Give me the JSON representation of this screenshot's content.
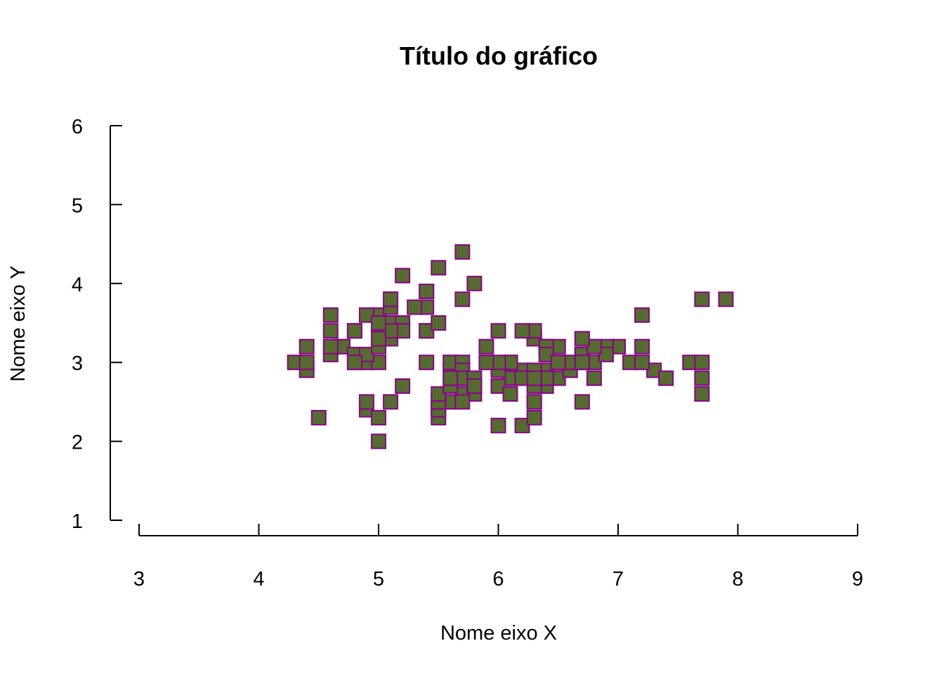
{
  "chart_data": {
    "type": "scatter",
    "title": "Título do gráfico",
    "xlabel": "Nome eixo X",
    "ylabel": "Nome eixo Y",
    "xlim": [
      3,
      9
    ],
    "ylim": [
      1,
      6
    ],
    "xticks": [
      3,
      4,
      5,
      6,
      7,
      8,
      9
    ],
    "yticks": [
      1,
      2,
      3,
      4,
      5,
      6
    ],
    "grid": false,
    "marker": "square",
    "fill_color": "#556B2F",
    "edge_color": "#8B008B",
    "series": [
      {
        "points": [
          [
            5.1,
            3.5
          ],
          [
            4.9,
            3.0
          ],
          [
            4.7,
            3.2
          ],
          [
            4.6,
            3.1
          ],
          [
            5.0,
            3.6
          ],
          [
            5.4,
            3.9
          ],
          [
            4.6,
            3.4
          ],
          [
            5.0,
            3.4
          ],
          [
            4.4,
            2.9
          ],
          [
            4.9,
            3.1
          ],
          [
            5.4,
            3.7
          ],
          [
            4.8,
            3.4
          ],
          [
            4.8,
            3.0
          ],
          [
            4.3,
            3.0
          ],
          [
            5.8,
            4.0
          ],
          [
            5.7,
            4.4
          ],
          [
            5.4,
            3.9
          ],
          [
            5.1,
            3.5
          ],
          [
            5.7,
            3.8
          ],
          [
            5.1,
            3.8
          ],
          [
            5.4,
            3.4
          ],
          [
            5.1,
            3.7
          ],
          [
            4.6,
            3.6
          ],
          [
            5.1,
            3.3
          ],
          [
            4.8,
            3.4
          ],
          [
            5.0,
            3.0
          ],
          [
            5.0,
            3.4
          ],
          [
            5.2,
            3.5
          ],
          [
            5.2,
            3.4
          ],
          [
            4.7,
            3.2
          ],
          [
            4.8,
            3.1
          ],
          [
            5.4,
            3.4
          ],
          [
            5.2,
            4.1
          ],
          [
            5.5,
            4.2
          ],
          [
            4.9,
            3.1
          ],
          [
            5.0,
            3.2
          ],
          [
            5.5,
            3.5
          ],
          [
            4.9,
            3.6
          ],
          [
            4.4,
            3.0
          ],
          [
            5.1,
            3.4
          ],
          [
            5.0,
            3.5
          ],
          [
            4.5,
            2.3
          ],
          [
            4.4,
            3.2
          ],
          [
            5.0,
            3.5
          ],
          [
            5.1,
            3.8
          ],
          [
            4.8,
            3.0
          ],
          [
            5.1,
            3.8
          ],
          [
            4.6,
            3.2
          ],
          [
            5.3,
            3.7
          ],
          [
            5.0,
            3.3
          ],
          [
            7.0,
            3.2
          ],
          [
            6.4,
            3.2
          ],
          [
            6.9,
            3.1
          ],
          [
            5.5,
            2.3
          ],
          [
            6.5,
            2.8
          ],
          [
            5.7,
            2.8
          ],
          [
            6.3,
            3.3
          ],
          [
            4.9,
            2.4
          ],
          [
            6.6,
            2.9
          ],
          [
            5.2,
            2.7
          ],
          [
            5.0,
            2.0
          ],
          [
            5.9,
            3.0
          ],
          [
            6.0,
            2.2
          ],
          [
            6.1,
            2.9
          ],
          [
            5.6,
            2.9
          ],
          [
            6.7,
            3.1
          ],
          [
            5.6,
            3.0
          ],
          [
            5.8,
            2.7
          ],
          [
            6.2,
            2.2
          ],
          [
            5.6,
            2.5
          ],
          [
            5.9,
            3.2
          ],
          [
            6.1,
            2.8
          ],
          [
            6.3,
            2.5
          ],
          [
            6.1,
            2.8
          ],
          [
            6.4,
            2.9
          ],
          [
            6.6,
            3.0
          ],
          [
            6.8,
            2.8
          ],
          [
            6.7,
            3.0
          ],
          [
            6.0,
            2.9
          ],
          [
            5.7,
            2.6
          ],
          [
            5.5,
            2.4
          ],
          [
            5.5,
            2.4
          ],
          [
            5.8,
            2.7
          ],
          [
            6.0,
            2.7
          ],
          [
            5.4,
            3.0
          ],
          [
            6.0,
            3.4
          ],
          [
            6.7,
            3.1
          ],
          [
            6.3,
            2.3
          ],
          [
            5.6,
            3.0
          ],
          [
            5.5,
            2.5
          ],
          [
            5.5,
            2.6
          ],
          [
            6.1,
            3.0
          ],
          [
            5.8,
            2.6
          ],
          [
            5.0,
            2.3
          ],
          [
            5.6,
            2.7
          ],
          [
            5.7,
            3.0
          ],
          [
            5.7,
            2.9
          ],
          [
            6.2,
            2.9
          ],
          [
            5.1,
            2.5
          ],
          [
            5.7,
            2.8
          ],
          [
            6.3,
            3.3
          ],
          [
            5.8,
            2.7
          ],
          [
            7.1,
            3.0
          ],
          [
            6.3,
            2.9
          ],
          [
            6.5,
            3.0
          ],
          [
            7.6,
            3.0
          ],
          [
            4.9,
            2.5
          ],
          [
            7.3,
            2.9
          ],
          [
            6.7,
            2.5
          ],
          [
            7.2,
            3.6
          ],
          [
            6.5,
            3.2
          ],
          [
            6.4,
            2.7
          ],
          [
            6.8,
            3.0
          ],
          [
            5.7,
            2.5
          ],
          [
            5.8,
            2.8
          ],
          [
            6.4,
            3.2
          ],
          [
            6.5,
            3.0
          ],
          [
            7.7,
            3.8
          ],
          [
            7.7,
            2.6
          ],
          [
            6.0,
            2.2
          ],
          [
            6.9,
            3.2
          ],
          [
            5.6,
            2.8
          ],
          [
            7.7,
            2.8
          ],
          [
            6.3,
            2.7
          ],
          [
            6.7,
            3.3
          ],
          [
            7.2,
            3.2
          ],
          [
            6.2,
            2.8
          ],
          [
            6.1,
            3.0
          ],
          [
            6.4,
            2.8
          ],
          [
            7.2,
            3.0
          ],
          [
            7.4,
            2.8
          ],
          [
            7.9,
            3.8
          ],
          [
            6.4,
            2.8
          ],
          [
            6.3,
            2.8
          ],
          [
            6.1,
            2.6
          ],
          [
            7.7,
            3.0
          ],
          [
            6.3,
            3.4
          ],
          [
            6.4,
            3.1
          ],
          [
            6.0,
            3.0
          ],
          [
            6.9,
            3.1
          ],
          [
            6.7,
            3.1
          ],
          [
            6.9,
            3.1
          ],
          [
            5.8,
            2.7
          ],
          [
            6.8,
            3.2
          ],
          [
            6.7,
            3.3
          ],
          [
            6.7,
            3.0
          ],
          [
            6.3,
            2.5
          ],
          [
            6.5,
            3.0
          ],
          [
            6.2,
            3.4
          ],
          [
            5.9,
            3.0
          ]
        ]
      }
    ]
  }
}
